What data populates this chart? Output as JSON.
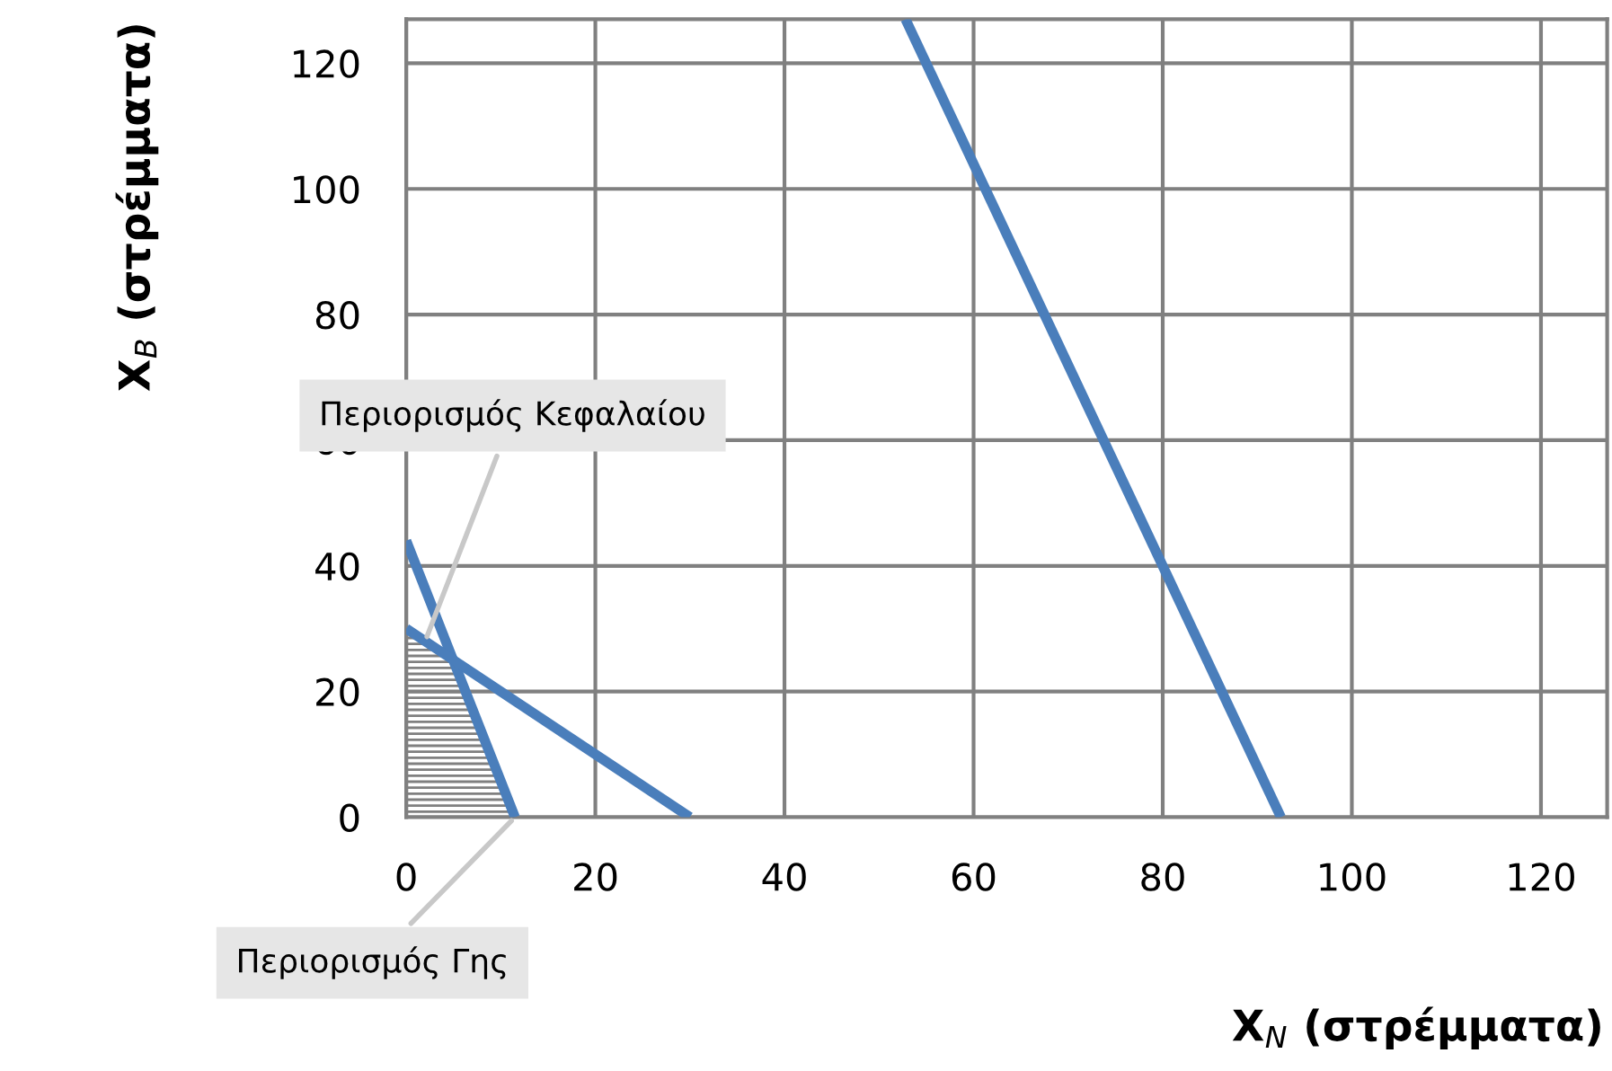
{
  "chart_data": {
    "type": "line",
    "xlabel": "X$_{N}$ (στρέμματα)",
    "ylabel": "X$_{B}$ (στρέμματα)",
    "xlim": [
      0,
      127
    ],
    "ylim": [
      0,
      127
    ],
    "xticks": [
      0,
      20,
      40,
      60,
      80,
      100,
      120
    ],
    "yticks": [
      0,
      20,
      40,
      60,
      80,
      100,
      120
    ],
    "grid": true,
    "series": [
      {
        "type": "area",
        "color": "#808080",
        "x": [
          0,
          5,
          11.5
        ],
        "values": [
          30,
          25,
          0
        ]
      },
      {
        "color": "#4a7ebb",
        "x": [
          52.8,
          92.5
        ],
        "values": [
          127,
          0
        ]
      },
      {
        "color": "#4a7ebb",
        "x": [
          0,
          11.5
        ],
        "values": [
          44,
          0
        ]
      },
      {
        "color": "#4a7ebb",
        "x": [
          0,
          30
        ],
        "values": [
          30,
          0
        ]
      }
    ],
    "annotations": [
      {
        "text": "Περιορισμός Κεφαλαίου",
        "x": 2,
        "y": 28
      },
      {
        "text": "Περιορισμός Γης",
        "x": 11.5,
        "y": 0
      }
    ]
  }
}
